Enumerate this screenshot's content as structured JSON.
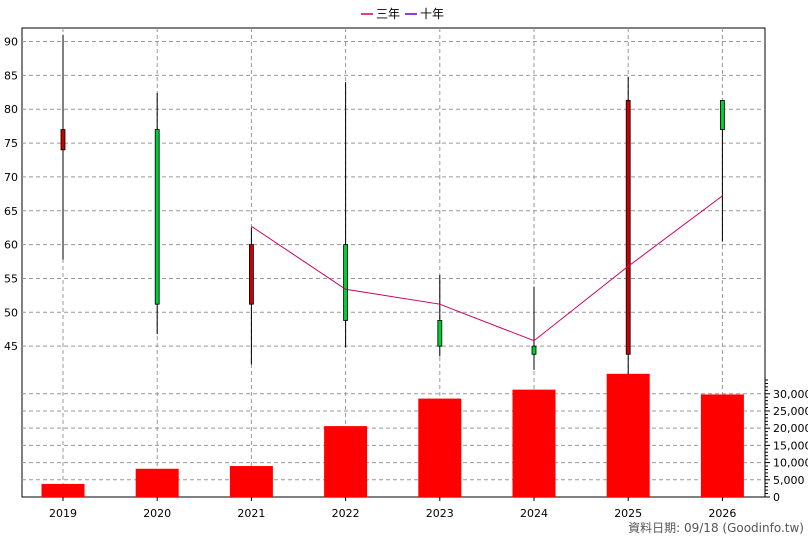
{
  "legend": [
    {
      "label": "三年",
      "color": "#cc0066"
    },
    {
      "label": "十年",
      "color": "#6600cc"
    }
  ],
  "footer": "資料日期: 09/18  (Goodinfo.tw)",
  "colors": {
    "up_candle": "#00cc33",
    "down_candle": "#cc0000",
    "volume_bar": "#ff0000",
    "ma3": "#cc0066"
  },
  "chart_data": {
    "type": "candlestick",
    "categories": [
      "2019",
      "2020",
      "2021",
      "2022",
      "2023",
      "2024",
      "2025",
      "2026"
    ],
    "price_ylim": [
      40,
      92
    ],
    "price_yticks": [
      45,
      50,
      55,
      60,
      65,
      70,
      75,
      80,
      85,
      90
    ],
    "candles": [
      {
        "x": "2019",
        "open": 77.0,
        "close": 74.0,
        "high": 91.0,
        "low": 57.8
      },
      {
        "x": "2020",
        "open": 51.2,
        "close": 77.0,
        "high": 82.4,
        "low": 46.8
      },
      {
        "x": "2021",
        "open": 60.0,
        "close": 51.2,
        "high": 62.5,
        "low": 42.3
      },
      {
        "x": "2022",
        "open": 48.8,
        "close": 60.0,
        "high": 84.0,
        "low": 44.8
      },
      {
        "x": "2023",
        "open": 45.0,
        "close": 48.8,
        "high": 55.5,
        "low": 43.5
      },
      {
        "x": "2024",
        "open": 43.8,
        "close": 45.0,
        "high": 53.8,
        "low": 41.5
      },
      {
        "x": "2025",
        "open": 81.3,
        "close": 43.8,
        "high": 84.8,
        "low": 40.8
      },
      {
        "x": "2026",
        "open": 77.0,
        "close": 81.3,
        "high": 81.3,
        "low": 60.5
      }
    ],
    "series": [
      {
        "name": "三年",
        "x": [
          "2021",
          "2022",
          "2023",
          "2024",
          "2025",
          "2026"
        ],
        "values": [
          62.7,
          53.4,
          51.2,
          45.8,
          56.8,
          67.2
        ]
      }
    ],
    "volume": [
      3800,
      8200,
      9000,
      20600,
      28600,
      31200,
      35800,
      29800
    ],
    "volume_ylim": [
      0,
      34000
    ],
    "volume_yticks": [
      0,
      5000,
      10000,
      15000,
      20000,
      25000,
      30000
    ],
    "volume_tick_labels": [
      "0",
      "5,000",
      "10,000",
      "15,000",
      "20,000",
      "25,000",
      "30,000"
    ]
  }
}
